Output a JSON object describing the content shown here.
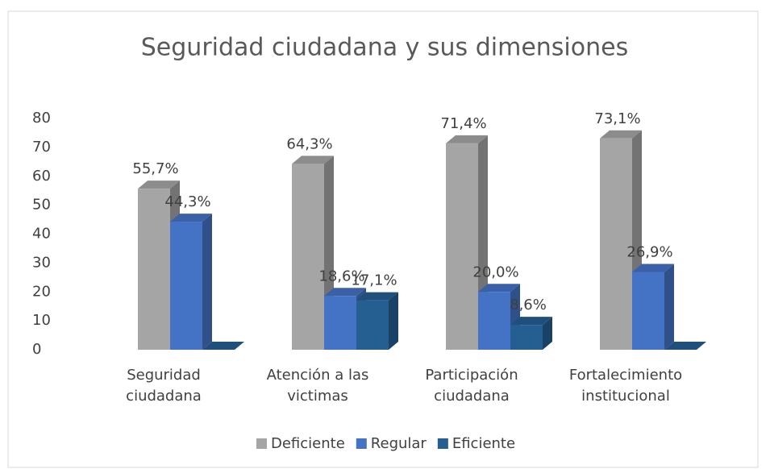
{
  "chart_data": {
    "type": "bar",
    "title": "Seguridad ciudadana y sus dimensiones",
    "categories": [
      "Seguridad ciudadana",
      "Atención a las victimas",
      "Participación ciudadana",
      "Fortalecimiento institucional"
    ],
    "series": [
      {
        "name": "Deficiente",
        "color": "#a5a5a5",
        "values": [
          55.7,
          64.3,
          71.4,
          73.1
        ],
        "value_labels": [
          "55,7%",
          "64,3%",
          "71,4%",
          "73,1%"
        ]
      },
      {
        "name": "Regular",
        "color": "#4472c4",
        "values": [
          44.3,
          18.6,
          20.0,
          26.9
        ],
        "value_labels": [
          "44,3%",
          "18,6%",
          "20,0%",
          "26,9%"
        ]
      },
      {
        "name": "Eficiente",
        "color": "#255e91",
        "values": [
          0,
          17.1,
          8.6,
          0
        ],
        "value_labels": [
          null,
          "17,1%",
          "8,6%",
          null
        ]
      }
    ],
    "ylim": [
      0,
      80
    ],
    "yticks": [
      0,
      10,
      20,
      30,
      40,
      50,
      60,
      70,
      80
    ],
    "legend": "bottom"
  }
}
